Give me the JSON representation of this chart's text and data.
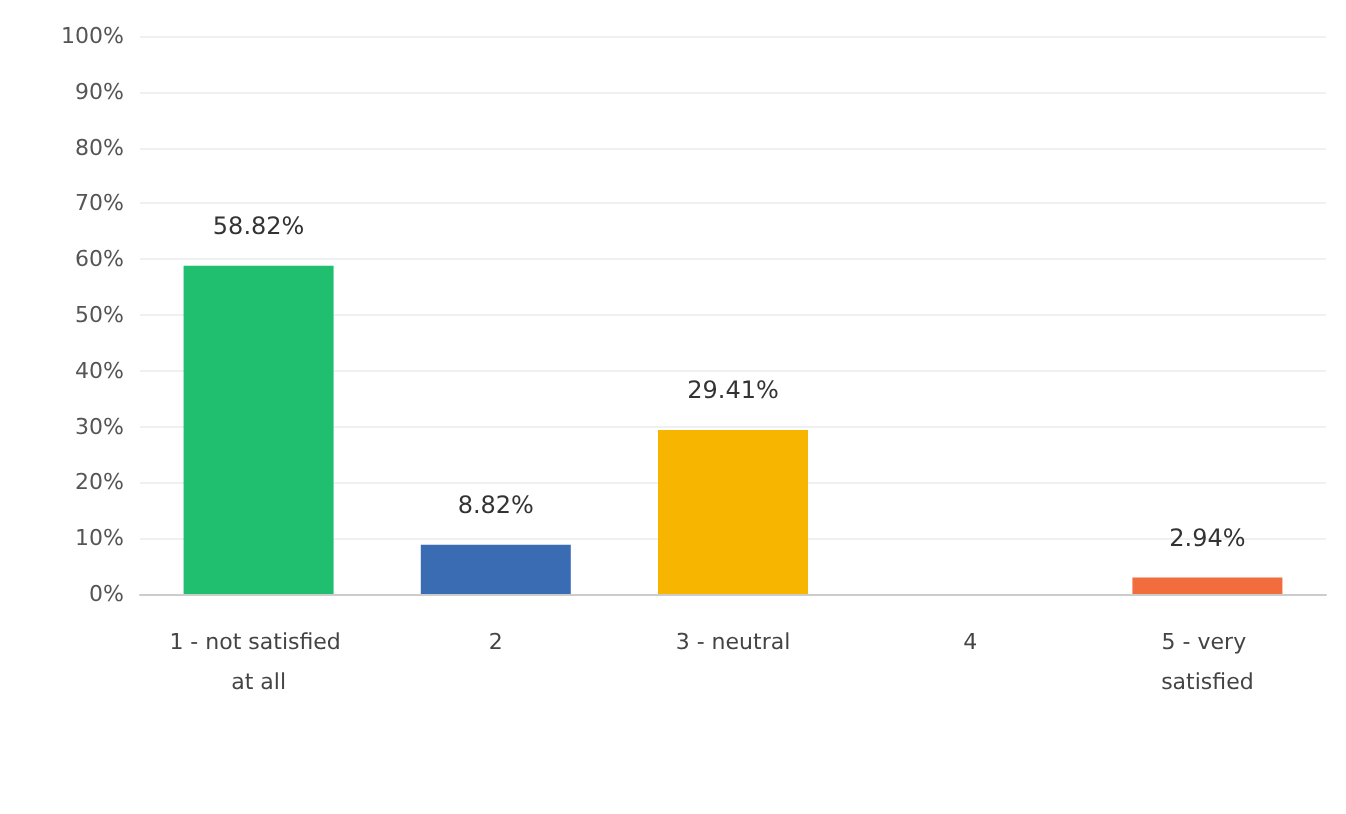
{
  "chart_data": {
    "type": "bar",
    "categories": [
      "1 - not satisfied at all",
      "2",
      "3 - neutral",
      "4",
      "5 - very satisfied"
    ],
    "values": [
      58.82,
      8.82,
      29.41,
      0,
      2.94
    ],
    "colors": [
      "#1fbf6f",
      "#3a6cb4",
      "#f7b500",
      "#bbbbbb",
      "#f26d3d"
    ],
    "value_labels": [
      "58.82%",
      "8.82%",
      "29.41%",
      null,
      "2.94%"
    ],
    "ylim": [
      0,
      100
    ],
    "yticks": [
      {
        "value": 0,
        "label": "0%"
      },
      {
        "value": 10,
        "label": "10%"
      },
      {
        "value": 20,
        "label": "20%"
      },
      {
        "value": 30,
        "label": "30%"
      },
      {
        "value": 40,
        "label": "40%"
      },
      {
        "value": 50,
        "label": "50%"
      },
      {
        "value": 60,
        "label": "60%"
      },
      {
        "value": 70,
        "label": "70%"
      },
      {
        "value": 80,
        "label": "80%"
      },
      {
        "value": 90,
        "label": "90%"
      },
      {
        "value": 100,
        "label": "100%"
      }
    ],
    "grid": "y"
  }
}
